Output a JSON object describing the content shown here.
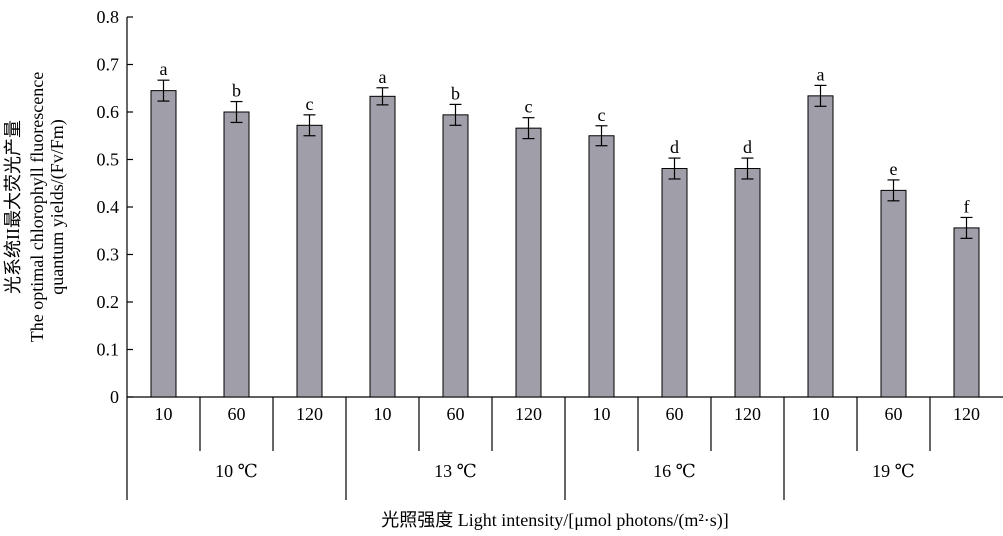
{
  "chart_data": {
    "type": "bar",
    "ylabel_lines": [
      "光系统II最大荧光产量",
      "The optimal chlorophyll fluorescence",
      "quantum yields/(Fv/Fm)"
    ],
    "xlabel": "光照强度 Light intensity/[μmol photons/(m²·s)]",
    "yticks": [
      "0",
      "0.1",
      "0.2",
      "0.3",
      "0.4",
      "0.5",
      "0.6",
      "0.7",
      "0.8"
    ],
    "ylim": [
      0,
      0.8
    ],
    "groups": [
      {
        "label": "10 ℃",
        "categories": [
          "10",
          "60",
          "120"
        ],
        "values": [
          0.645,
          0.6,
          0.572
        ],
        "errors": [
          0.022,
          0.022,
          0.022
        ],
        "letters": [
          "a",
          "b",
          "c"
        ]
      },
      {
        "label": "13 ℃",
        "categories": [
          "10",
          "60",
          "120"
        ],
        "values": [
          0.633,
          0.594,
          0.566
        ],
        "errors": [
          0.018,
          0.022,
          0.022
        ],
        "letters": [
          "a",
          "b",
          "c"
        ]
      },
      {
        "label": "16 ℃",
        "categories": [
          "10",
          "60",
          "120"
        ],
        "values": [
          0.55,
          0.481,
          0.481
        ],
        "errors": [
          0.021,
          0.022,
          0.022
        ],
        "letters": [
          "c",
          "d",
          "d"
        ]
      },
      {
        "label": "19 ℃",
        "categories": [
          "10",
          "60",
          "120"
        ],
        "values": [
          0.634,
          0.435,
          0.356
        ],
        "errors": [
          0.022,
          0.022,
          0.022
        ],
        "letters": [
          "a",
          "e",
          "f"
        ]
      }
    ],
    "bar_color": "#a09fa9",
    "grid": false,
    "legend": "none"
  }
}
